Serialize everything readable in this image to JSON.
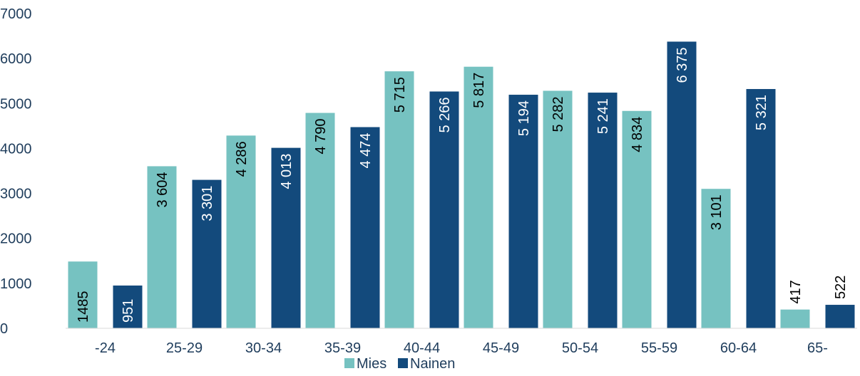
{
  "chart_data": {
    "type": "bar",
    "categories": [
      "-24",
      "25-29",
      "30-34",
      "35-39",
      "40-44",
      "45-49",
      "50-54",
      "55-59",
      "60-64",
      "65-"
    ],
    "series": [
      {
        "name": "Mies",
        "color": "#76c2c1",
        "values": [
          1485,
          3604,
          4286,
          4790,
          5715,
          5817,
          5282,
          4834,
          3101,
          417
        ],
        "labels": [
          "1485",
          "3 604",
          "4 286",
          "4 790",
          "5 715",
          "5 817",
          "5 282",
          "4 834",
          "3 101",
          "417"
        ]
      },
      {
        "name": "Nainen",
        "color": "#134a7c",
        "values": [
          951,
          3301,
          4013,
          4474,
          5266,
          5194,
          5241,
          6375,
          5321,
          522
        ],
        "labels": [
          "951",
          "3 301",
          "4 013",
          "4 474",
          "5 266",
          "5 194",
          "5 241",
          "6 375",
          "5 321",
          "522"
        ]
      }
    ],
    "ylim": [
      0,
      7000
    ],
    "yticks": [
      "0",
      "1000",
      "2000",
      "3000",
      "4000",
      "5000",
      "6000",
      "7000"
    ],
    "grid": false,
    "legend_position": "bottom",
    "title": "",
    "xlabel": "",
    "ylabel": ""
  }
}
